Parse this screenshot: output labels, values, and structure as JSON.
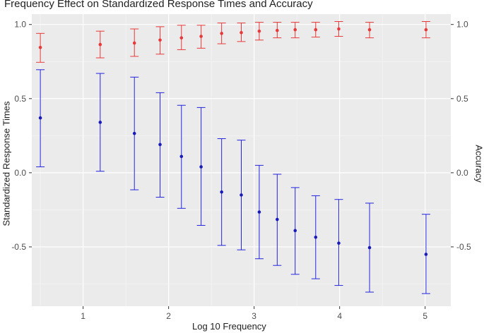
{
  "chart_data": {
    "type": "scatter",
    "title": "Frequency Effect on Standardized Response Times and Accuracy",
    "xlabel": "Log 10 Frequency",
    "ylabel_left": "Standardized Response Times",
    "ylabel_right": "Accuracy",
    "xlim": [
      0.4,
      5.3
    ],
    "ylim": [
      -0.9,
      1.07
    ],
    "x_ticks": [
      1,
      2,
      3,
      4,
      5
    ],
    "x_tick_labels": [
      "1",
      "2",
      "3",
      "4",
      "5"
    ],
    "y_ticks": [
      -0.5,
      0.0,
      0.5,
      1.0
    ],
    "y_tick_labels": [
      "-0.5",
      "0.0",
      "0.5",
      "1.0"
    ],
    "grid": true,
    "series": [
      {
        "color": "#2424e0",
        "x": [
          0.5,
          1.2,
          1.6,
          1.9,
          2.15,
          2.38,
          2.62,
          2.85,
          3.06,
          3.27,
          3.48,
          3.72,
          3.99,
          4.35,
          5.01
        ],
        "y": [
          0.37,
          0.34,
          0.265,
          0.19,
          0.11,
          0.04,
          -0.13,
          -0.15,
          -0.265,
          -0.315,
          -0.39,
          -0.435,
          -0.475,
          -0.505,
          -0.55
        ],
        "ylow": [
          0.04,
          0.01,
          -0.115,
          -0.165,
          -0.24,
          -0.355,
          -0.49,
          -0.52,
          -0.58,
          -0.625,
          -0.685,
          -0.715,
          -0.76,
          -0.805,
          -0.815
        ],
        "yhigh": [
          0.695,
          0.67,
          0.645,
          0.54,
          0.455,
          0.44,
          0.23,
          0.22,
          0.05,
          -0.01,
          -0.1,
          -0.155,
          -0.18,
          -0.205,
          -0.28
        ]
      },
      {
        "color": "#e8393a",
        "x": [
          0.5,
          1.2,
          1.6,
          1.9,
          2.15,
          2.38,
          2.62,
          2.85,
          3.06,
          3.27,
          3.48,
          3.72,
          3.99,
          4.35,
          5.01
        ],
        "y": [
          0.845,
          0.865,
          0.875,
          0.895,
          0.91,
          0.92,
          0.94,
          0.945,
          0.955,
          0.96,
          0.965,
          0.965,
          0.97,
          0.965,
          0.965
        ],
        "ylow": [
          0.745,
          0.775,
          0.785,
          0.8,
          0.83,
          0.84,
          0.87,
          0.885,
          0.895,
          0.91,
          0.91,
          0.915,
          0.92,
          0.91,
          0.91
        ],
        "yhigh": [
          0.94,
          0.955,
          0.97,
          0.985,
          0.995,
          0.995,
          1.01,
          1.01,
          1.015,
          1.015,
          1.015,
          1.015,
          1.02,
          1.015,
          1.02
        ]
      }
    ]
  }
}
